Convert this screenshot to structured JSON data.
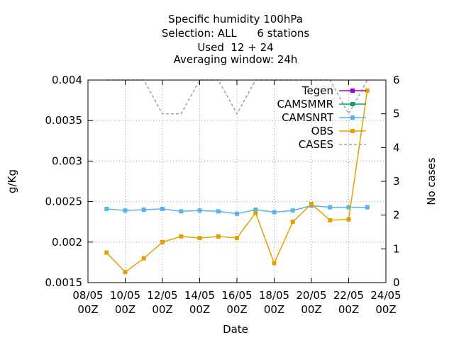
{
  "chart_data": {
    "type": "line",
    "title_lines": [
      "Specific humidity 100hPa",
      "Selection: ALL      6 stations",
      "Used  12 + 24",
      "Averaging window: 24h"
    ],
    "xlabel": "Date",
    "ylabel": "g/Kg",
    "y2label": "No cases",
    "x_ticks": [
      {
        "date": "2023-05-08T00:00",
        "line1": "08/05",
        "line2": "00Z"
      },
      {
        "date": "2023-05-10T00:00",
        "line1": "10/05",
        "line2": "00Z"
      },
      {
        "date": "2023-05-12T00:00",
        "line1": "12/05",
        "line2": "00Z"
      },
      {
        "date": "2023-05-14T00:00",
        "line1": "14/05",
        "line2": "00Z"
      },
      {
        "date": "2023-05-16T00:00",
        "line1": "16/05",
        "line2": "00Z"
      },
      {
        "date": "2023-05-18T00:00",
        "line1": "18/05",
        "line2": "00Z"
      },
      {
        "date": "2023-05-20T00:00",
        "line1": "20/05",
        "line2": "00Z"
      },
      {
        "date": "2023-05-22T00:00",
        "line1": "22/05",
        "line2": "00Z"
      },
      {
        "date": "2023-05-24T00:00",
        "line1": "24/05",
        "line2": "00Z"
      }
    ],
    "xlim": [
      "2023-05-08T00:00",
      "2023-05-24T00:00"
    ],
    "ylim": [
      0.0015,
      0.004
    ],
    "y_ticks": [
      "0.0015",
      "0.002",
      "0.0025",
      "0.003",
      "0.0035",
      "0.004"
    ],
    "y2lim": [
      0,
      6
    ],
    "y2_ticks": [
      "0",
      "1",
      "2",
      "3",
      "4",
      "5",
      "6"
    ],
    "grid": true,
    "legend_position": "top-right",
    "x": [
      "2023-05-09T00:00",
      "2023-05-10T00:00",
      "2023-05-11T00:00",
      "2023-05-12T00:00",
      "2023-05-13T00:00",
      "2023-05-14T00:00",
      "2023-05-15T00:00",
      "2023-05-16T00:00",
      "2023-05-17T00:00",
      "2023-05-18T00:00",
      "2023-05-19T00:00",
      "2023-05-20T00:00",
      "2023-05-21T00:00",
      "2023-05-22T00:00",
      "2023-05-23T00:00"
    ],
    "series": [
      {
        "name": "Tegen",
        "color": "#9400d3",
        "marker": "square",
        "axis": "y",
        "values": [
          null,
          null,
          null,
          null,
          null,
          null,
          null,
          null,
          null,
          null,
          null,
          null,
          null,
          null,
          null
        ]
      },
      {
        "name": "CAMSMMR",
        "color": "#009e73",
        "marker": "square",
        "axis": "y",
        "values": [
          null,
          null,
          null,
          null,
          null,
          null,
          null,
          null,
          null,
          null,
          null,
          null,
          null,
          null,
          null
        ]
      },
      {
        "name": "CAMSNRT",
        "color": "#56b4e9",
        "marker": "square",
        "axis": "y",
        "values": [
          0.00241,
          0.00239,
          0.0024,
          0.00241,
          0.00238,
          0.00239,
          0.00238,
          0.00235,
          0.0024,
          0.00237,
          0.00239,
          0.00245,
          0.00243,
          0.00243,
          0.00243
        ]
      },
      {
        "name": "OBS",
        "color": "#e69f00",
        "marker": "square",
        "axis": "y",
        "values": [
          0.00187,
          0.00163,
          0.0018,
          0.002,
          0.00207,
          0.00205,
          0.00207,
          0.00205,
          0.00236,
          0.00174,
          0.00225,
          0.00247,
          0.00227,
          0.00228,
          0.00387
        ]
      },
      {
        "name": "CASES",
        "color": "#a0a0a4",
        "dashed": true,
        "axis": "y2",
        "values": [
          6,
          6,
          6,
          5,
          5,
          6,
          6,
          5,
          6,
          6,
          6,
          6,
          6,
          5,
          6
        ]
      }
    ]
  }
}
